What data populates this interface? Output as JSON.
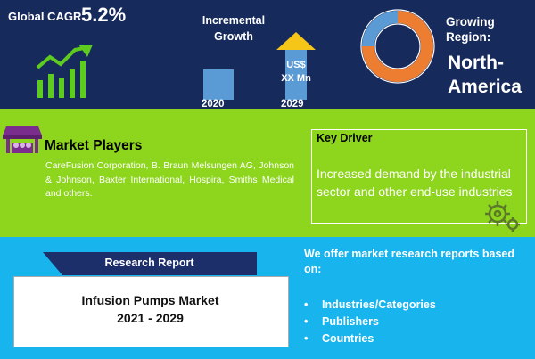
{
  "top": {
    "cagr_label": "Global CAGR",
    "cagr_value": "5.2%",
    "growth_title": "Incremental Growth",
    "year_start": "2020",
    "year_end": "2029",
    "value_line1": "US$",
    "value_line2": "XX Mn",
    "region_label_line1": "Growing",
    "region_label_line2": "Region:",
    "region_value_line1": "North-",
    "region_value_line2": "America"
  },
  "market_players": {
    "title": "Market Players",
    "text": "CareFusion Corporation, B. Braun Melsungen AG, Johnson & Johnson, Baxter International, Hospira, Smiths Medical and others."
  },
  "key_driver": {
    "title": "Key Driver",
    "text": "Increased demand by the industrial sector and other end-use industries"
  },
  "research_report": {
    "banner": "Research Report",
    "name": "Infusion Pumps Market",
    "years": "2021 - 2029"
  },
  "offer": {
    "intro": "We offer market research reports based on:",
    "items": [
      "Industries/Categories",
      "Publishers",
      "Countries"
    ]
  },
  "colors": {
    "top_bg": "#172a5c",
    "mid_bg": "#8ed51d",
    "bottom_bg": "#17b4ee",
    "accent_green": "#5ecb1f",
    "bar_blue": "#5b9bd5",
    "arrow_yellow": "#f5c518"
  },
  "icons": [
    "growth-chart-icon",
    "donut-ring-icon",
    "market-stall-icon",
    "gears-icon"
  ]
}
